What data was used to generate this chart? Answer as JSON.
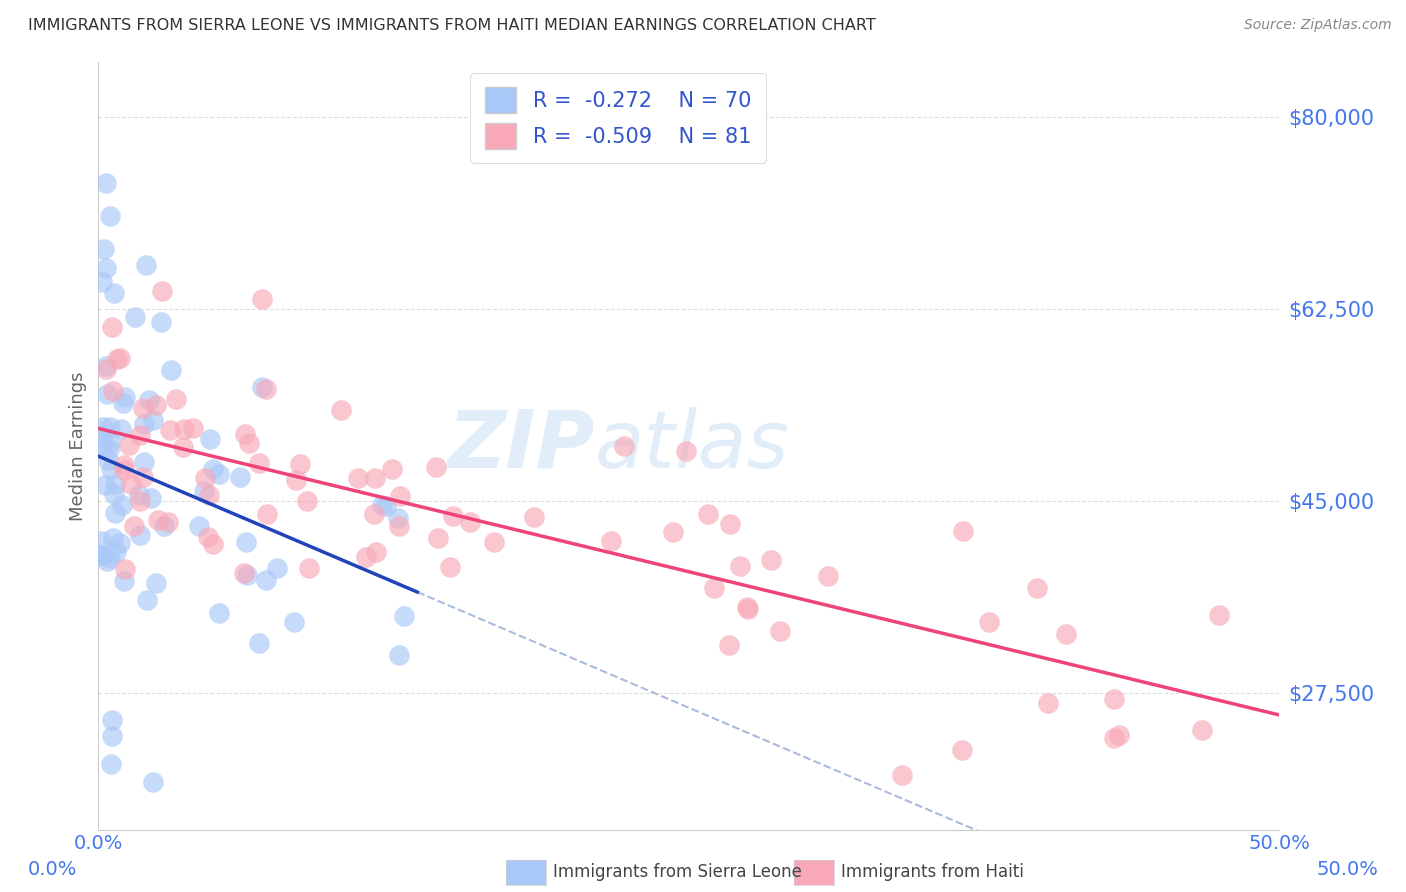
{
  "title": "IMMIGRANTS FROM SIERRA LEONE VS IMMIGRANTS FROM HAITI MEDIAN EARNINGS CORRELATION CHART",
  "source": "Source: ZipAtlas.com",
  "ylabel": "Median Earnings",
  "x_min": 0.0,
  "x_max": 0.5,
  "y_min": 15000,
  "y_max": 85000,
  "yticks": [
    27500,
    45000,
    62500,
    80000
  ],
  "ytick_labels": [
    "$27,500",
    "$45,000",
    "$62,500",
    "$80,000"
  ],
  "xtick_left_label": "0.0%",
  "xtick_right_label": "50.0%",
  "sierra_leone_color": "#A8C8F8",
  "haiti_color": "#F8A8B8",
  "sierra_leone_line_color": "#2244BB",
  "haiti_line_color": "#EE4477",
  "sierra_leone_dashed_color": "#AABBDD",
  "legend_label_sierra": "Immigrants from Sierra Leone",
  "legend_label_haiti": "Immigrants from Haiti",
  "watermark": "ZIPatlas",
  "background_color": "#FFFFFF",
  "grid_color": "#DDDDDD",
  "title_color": "#333333",
  "axis_color": "#4477EE",
  "legend_text_color": "#3355CC",
  "legend_r_sl": "R = ",
  "legend_r_sl_val": "-0.272",
  "legend_n_sl": "N = ",
  "legend_n_sl_val": "70",
  "legend_r_h": "R = ",
  "legend_r_h_val": "-0.509",
  "legend_n_h": "N = ",
  "legend_n_h_val": "81"
}
